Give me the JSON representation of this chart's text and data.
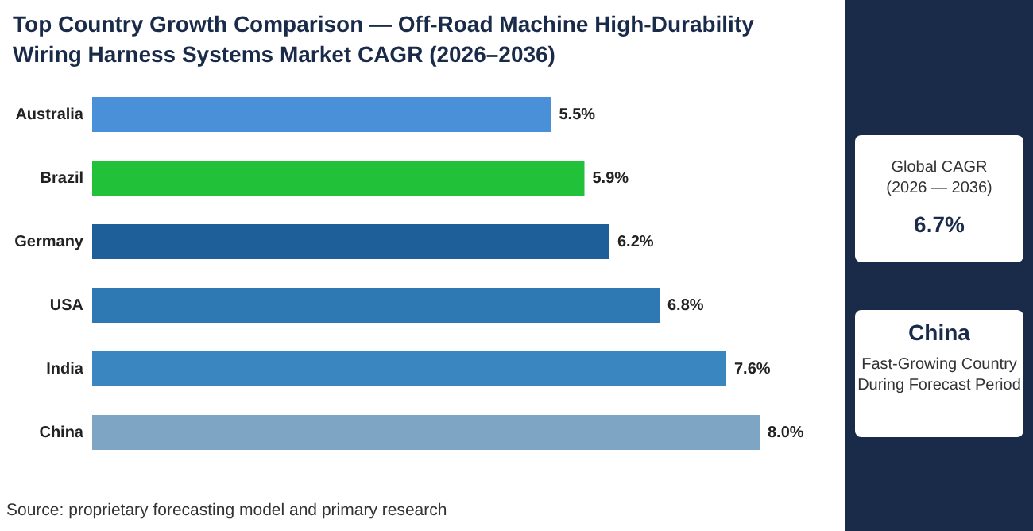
{
  "chart_data": [
    {
      "type": "bar",
      "title": "Top Country Growth Comparison — Off-Road Machine High-Durability Wiring Harness Systems Market CAGR (2026–2036)",
      "orientation": "horizontal",
      "categories": [
        "Australia",
        "Brazil",
        "Germany",
        "USA",
        "India",
        "China"
      ],
      "values": [
        5.5,
        5.9,
        6.2,
        6.8,
        7.6,
        8.0
      ],
      "colors": [
        "#4a90d9",
        "#22c13a",
        "#1f5f99",
        "#2e78b4",
        "#3a86c0",
        "#7ea6c4"
      ],
      "value_labels": [
        "5.5%",
        "5.9%",
        "6.2%",
        "6.8%",
        "7.6%",
        "8.0%"
      ],
      "annotations": [
        "Source: proprietary forecasting model and primary research"
      ]
    },
    {
      "type": "other",
      "annotations": [
        "Global CAGR",
        "(2026 — 2036)",
        "6.7%",
        "China",
        "Fast-Growing Country During Forecast Period"
      ]
    }
  ]
}
